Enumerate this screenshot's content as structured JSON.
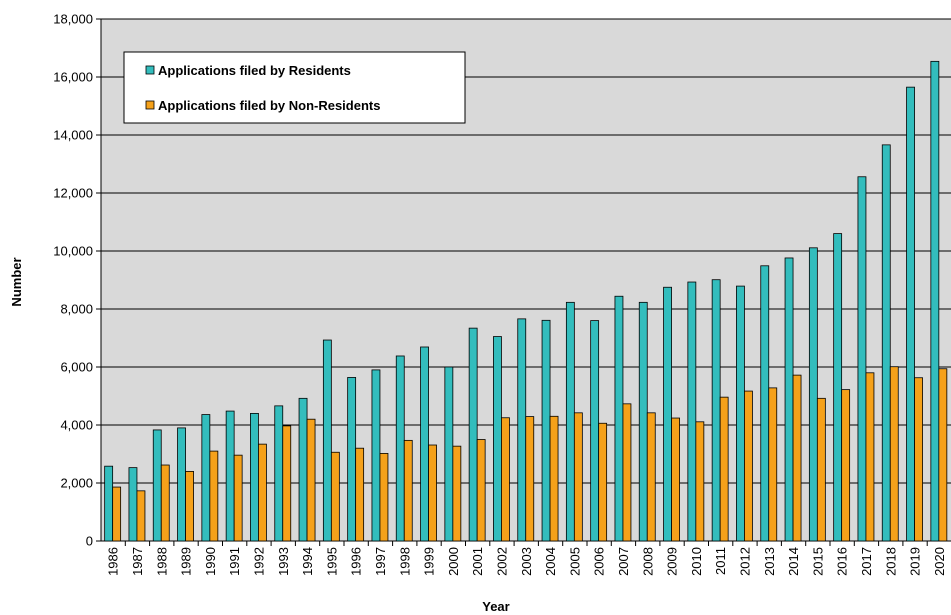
{
  "chart_data": {
    "type": "bar",
    "title": "",
    "xlabel": "Year",
    "ylabel": "Number",
    "ylim": [
      0,
      18000
    ],
    "yticks": [
      0,
      2000,
      4000,
      6000,
      8000,
      10000,
      12000,
      14000,
      16000,
      18000
    ],
    "ytick_labels": [
      "0",
      "2,000",
      "4,000",
      "6,000",
      "8,000",
      "10,000",
      "12,000",
      "14,000",
      "16,000",
      "18,000"
    ],
    "grid": true,
    "legend_position": "top-left",
    "categories": [
      "1986",
      "1987",
      "1988",
      "1989",
      "1990",
      "1991",
      "1992",
      "1993",
      "1994",
      "1995",
      "1996",
      "1997",
      "1998",
      "1999",
      "2000",
      "2001",
      "2002",
      "2003",
      "2004",
      "2005",
      "2006",
      "2007",
      "2008",
      "2009",
      "2010",
      "2011",
      "2012",
      "2013",
      "2014",
      "2015",
      "2016",
      "2017",
      "2018",
      "2019",
      "2020"
    ],
    "series": [
      {
        "name": "Applications filed by Residents",
        "color": "#33bdbd",
        "values": [
          2580,
          2530,
          3830,
          3900,
          4360,
          4480,
          4400,
          4660,
          4920,
          6930,
          5640,
          5900,
          6380,
          6690,
          6000,
          7340,
          7050,
          7660,
          7610,
          8230,
          7600,
          8440,
          8230,
          8750,
          8930,
          9010,
          8790,
          9490,
          9760,
          10110,
          10600,
          12560,
          13660,
          15650,
          16540
        ]
      },
      {
        "name": "Applications filed by Non-Residents",
        "color": "#f5a11a",
        "values": [
          1860,
          1730,
          2620,
          2400,
          3100,
          2960,
          3340,
          3970,
          4200,
          3060,
          3200,
          3020,
          3470,
          3310,
          3270,
          3500,
          4250,
          4290,
          4300,
          4420,
          4060,
          4730,
          4420,
          4240,
          4110,
          4960,
          5170,
          5280,
          5720,
          4920,
          5220,
          5800,
          6010,
          5630,
          5940
        ]
      }
    ],
    "colors": {
      "plot_background": "#d9d9d9",
      "gridline": "#000000",
      "bar_outline": "#000000"
    }
  }
}
